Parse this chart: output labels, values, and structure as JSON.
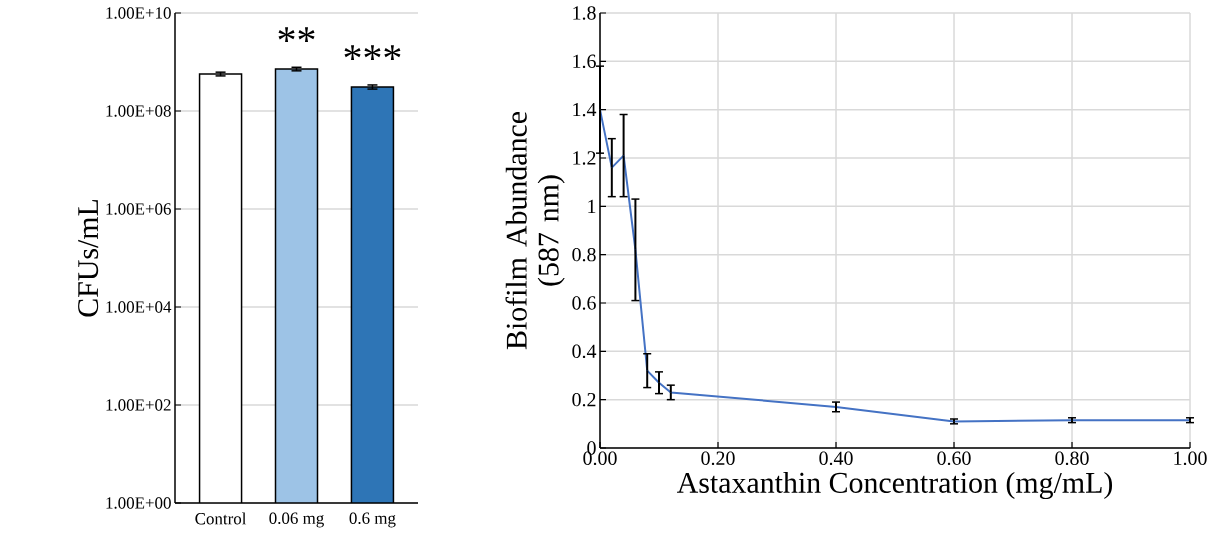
{
  "chart_data": [
    {
      "type": "bar",
      "ylabel": "CFUs/mL",
      "categories": [
        "Control",
        "0.06 mg",
        "0.6 mg"
      ],
      "values": [
        570000000,
        720000000,
        310000000
      ],
      "colors": [
        "#ffffff",
        "#9dc3e6",
        "#2e75b6"
      ],
      "errors": [
        50000000,
        60000000,
        30000000
      ],
      "log": "y",
      "ylim": [
        1,
        10000000000
      ],
      "yticks": [
        {
          "value": 1,
          "label": "1.00E+00"
        },
        {
          "value": 100,
          "label": "1.00E+02"
        },
        {
          "value": 10000,
          "label": "1.00E+04"
        },
        {
          "value": 1000000,
          "label": "1.00E+06"
        },
        {
          "value": 100000000,
          "label": "1.00E+08"
        },
        {
          "value": 10000000000,
          "label": "1.00E+10"
        }
      ],
      "grid": "y",
      "annotations": [
        {
          "text": "**",
          "x": "0.06 mg",
          "y": 720000000
        },
        {
          "text": "***",
          "x": "0.6 mg",
          "y": 310000000
        }
      ]
    },
    {
      "type": "line",
      "xlabel": "Astaxanthin Concentration (mg/mL)",
      "ylabel": "Biofilm Abundance (587 nm)",
      "x": [
        0,
        0.02,
        0.04,
        0.06,
        0.08,
        0.1,
        0.12,
        0.4,
        0.6,
        0.8,
        1.0
      ],
      "series": [
        {
          "color": "#4472c4",
          "values": [
            1.4,
            1.16,
            1.21,
            0.82,
            0.32,
            0.27,
            0.23,
            0.17,
            0.11,
            0.115,
            0.115
          ],
          "errors": [
            0.18,
            0.12,
            0.17,
            0.21,
            0.07,
            0.045,
            0.03,
            0.02,
            0.01,
            0.01,
            0.01
          ]
        }
      ],
      "xlim": [
        0,
        1
      ],
      "ylim": [
        0,
        1.8
      ],
      "xticks": [
        {
          "value": 0,
          "label": "0.00"
        },
        {
          "value": 0.2,
          "label": "0.20"
        },
        {
          "value": 0.4,
          "label": "0.40"
        },
        {
          "value": 0.6,
          "label": "0.60"
        },
        {
          "value": 0.8,
          "label": "0.80"
        },
        {
          "value": 1,
          "label": "1.00"
        }
      ],
      "yticks": [
        0,
        0.2,
        0.4,
        0.6,
        0.8,
        1,
        1.2,
        1.4,
        1.6,
        1.8
      ],
      "grid": true
    }
  ]
}
